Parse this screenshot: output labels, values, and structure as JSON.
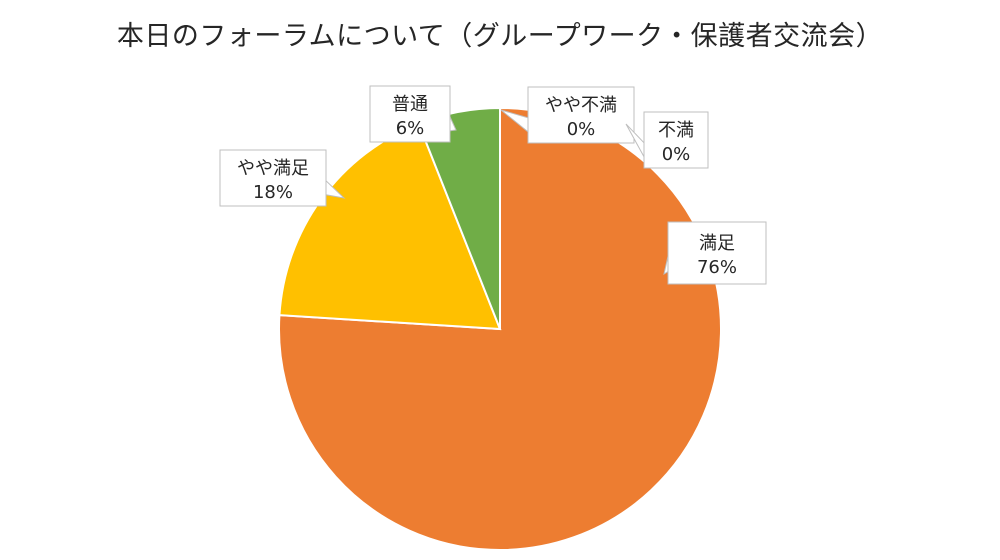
{
  "chart_data": {
    "type": "pie",
    "title": "本日のフォーラムについて（グループワーク・保護者交流会）",
    "start_angle": 0,
    "direction": "clockwise",
    "slices": [
      {
        "label": "満足",
        "value": 76,
        "display": "76%",
        "color": "#ED7D31"
      },
      {
        "label": "やや満足",
        "value": 18,
        "display": "18%",
        "color": "#FFC000"
      },
      {
        "label": "普通",
        "value": 6,
        "display": "6%",
        "color": "#70AD47"
      },
      {
        "label": "やや不満",
        "value": 0,
        "display": "0%",
        "color": "#5B9BD5"
      },
      {
        "label": "不満",
        "value": 0,
        "display": "0%",
        "color": "#A5A5A5"
      }
    ],
    "data_labels": "callout-category-percent",
    "legend": "none"
  }
}
